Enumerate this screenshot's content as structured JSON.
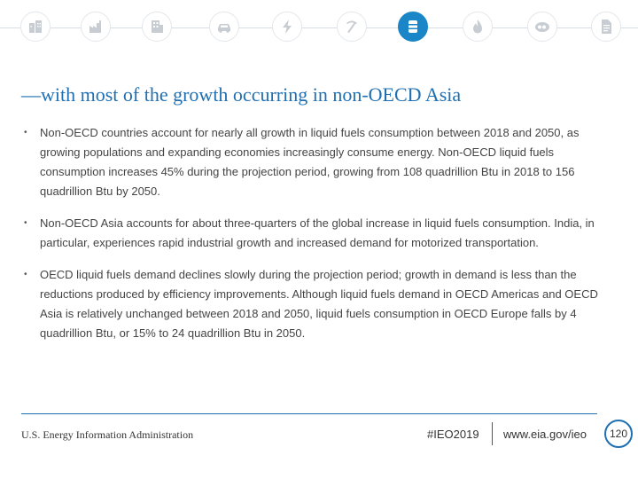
{
  "nav_icons": [
    {
      "name": "buildings-icon",
      "active": false
    },
    {
      "name": "factory-icon",
      "active": false
    },
    {
      "name": "office-building-icon",
      "active": false
    },
    {
      "name": "car-icon",
      "active": false
    },
    {
      "name": "lightning-icon",
      "active": false
    },
    {
      "name": "pickaxe-icon",
      "active": false
    },
    {
      "name": "oil-barrel-icon",
      "active": true
    },
    {
      "name": "flame-icon",
      "active": false
    },
    {
      "name": "co2-icon",
      "active": false
    },
    {
      "name": "document-icon",
      "active": false
    }
  ],
  "colors": {
    "accent": "#1f6fb2",
    "active_icon": "#1a86c7",
    "icon_gray": "#c7cdd3"
  },
  "title": "—with most of the growth occurring in non-OECD Asia",
  "bullet_marker": "•",
  "bullets": [
    "Non-OECD countries account for nearly all growth in liquid fuels consumption between 2018 and 2050, as growing populations and expanding economies increasingly consume energy. Non-OECD liquid fuels consumption increases 45% during the projection period, growing from 108 quadrillion Btu in 2018 to 156 quadrillion Btu by 2050.",
    "Non-OECD Asia accounts for about three-quarters of the global increase in liquid fuels consumption. India, in particular, experiences rapid industrial growth and increased demand for motorized transportation.",
    "OECD liquid fuels demand declines slowly during the projection period; growth in demand is less than the reductions produced by efficiency improvements. Although liquid fuels demand in OECD Americas and OECD Asia is relatively unchanged between 2018 and 2050, liquid fuels consumption in OECD Europe falls by 4 quadrillion Btu, or 15% to 24 quadrillion Btu in 2050."
  ],
  "footer": {
    "org": "U.S. Energy Information Administration",
    "tag": "#IEO2019",
    "url": "www.eia.gov/ieo",
    "page": "120"
  }
}
